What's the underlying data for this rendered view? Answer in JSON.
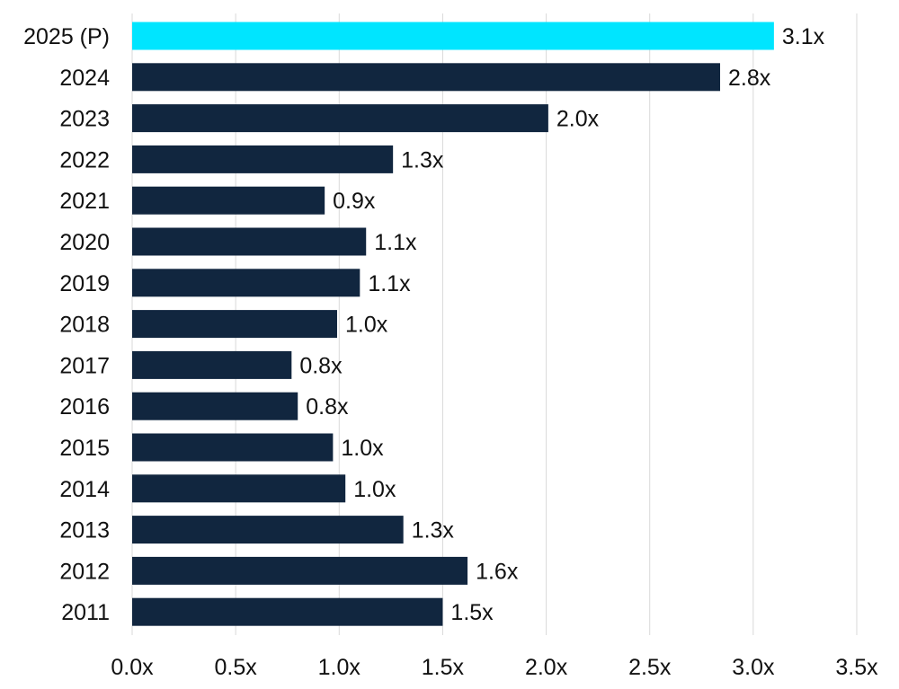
{
  "chart_data": {
    "type": "bar",
    "orientation": "horizontal",
    "categories": [
      "2025 (P)",
      "2024",
      "2023",
      "2022",
      "2021",
      "2020",
      "2019",
      "2018",
      "2017",
      "2016",
      "2015",
      "2014",
      "2013",
      "2012",
      "2011"
    ],
    "values": [
      3.1,
      2.84,
      2.01,
      1.26,
      0.93,
      1.13,
      1.1,
      0.99,
      0.77,
      0.8,
      0.97,
      1.03,
      1.31,
      1.62,
      1.5
    ],
    "data_labels": [
      "3.1x",
      "2.8x",
      "2.0x",
      "1.3x",
      "0.9x",
      "1.1x",
      "1.1x",
      "1.0x",
      "0.8x",
      "0.8x",
      "1.0x",
      "1.0x",
      "1.3x",
      "1.6x",
      "1.5x"
    ],
    "x_ticks": [
      0,
      0.5,
      1,
      1.5,
      2,
      2.5,
      3,
      3.5
    ],
    "x_tick_labels": [
      "0.0x",
      "0.5x",
      "1.0x",
      "1.5x",
      "2.0x",
      "2.5x",
      "3.0x",
      "3.5x"
    ],
    "xlim": [
      0,
      3.5
    ],
    "title": "",
    "xlabel": "",
    "ylabel": "",
    "grid": "vertical",
    "legend": "none",
    "colors": {
      "highlight": "#00E5FF",
      "default": "#11263F",
      "grid": "#D9D9D9",
      "text": "#111111"
    },
    "highlight_index": 0
  }
}
